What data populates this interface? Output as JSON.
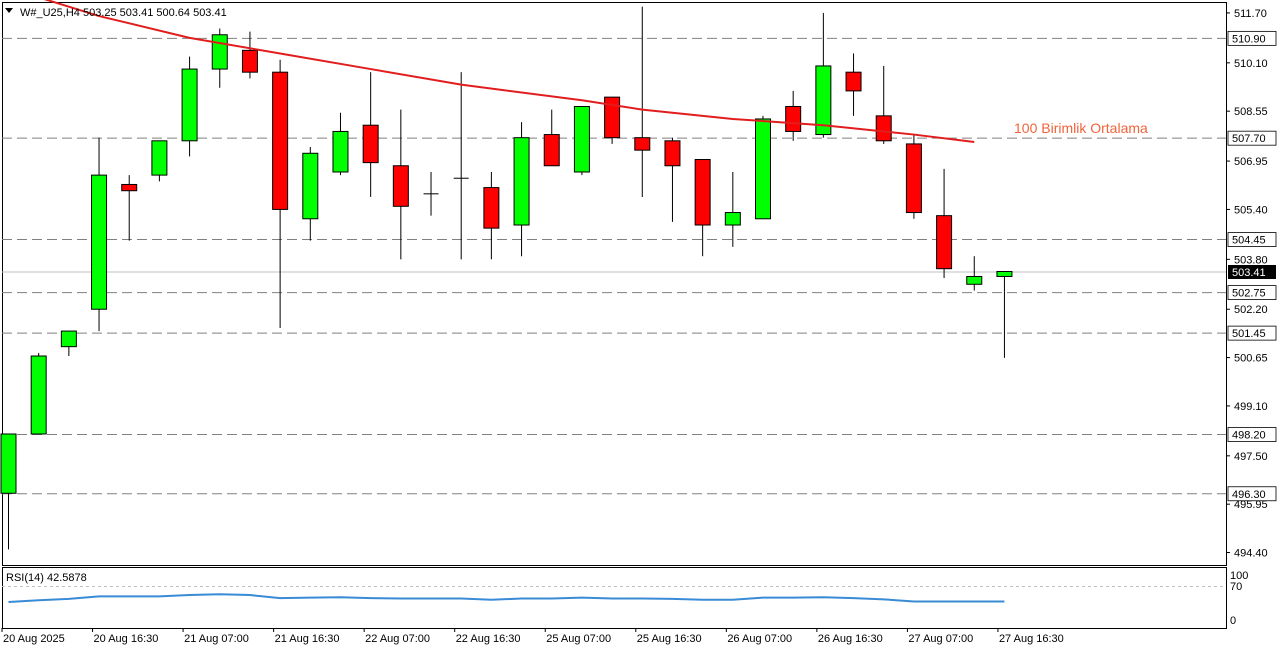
{
  "chart_data": {
    "type": "candlestick",
    "header": {
      "title": "W#_U25,H4  503.25 503.41 500.64 503.41",
      "dropdown_icon": "triangle-down-icon"
    },
    "annotation": "100 Birimlik Ortalama",
    "colors": {
      "up": "#00ff00",
      "down": "#ff0000",
      "ma": "#e11d1d",
      "rsi": "#3a8bd6",
      "annotation": "#f0643c",
      "level": "#808080"
    },
    "y_axis": {
      "min": 494.0,
      "max": 512.05,
      "ticks": [
        494.4,
        495.95,
        497.5,
        499.1,
        500.65,
        502.2,
        503.8,
        505.4,
        506.95,
        508.55,
        510.1,
        511.7
      ]
    },
    "horizontal_levels": [
      510.9,
      507.7,
      504.45,
      502.75,
      501.45,
      498.2,
      496.3
    ],
    "current_price": 503.41,
    "x_labels": [
      {
        "i": 0,
        "text": "20 Aug 2025"
      },
      {
        "i": 3,
        "text": "20 Aug 16:30"
      },
      {
        "i": 6,
        "text": "21 Aug 07:00"
      },
      {
        "i": 9,
        "text": "21 Aug 16:30"
      },
      {
        "i": 12,
        "text": "22 Aug 07:00"
      },
      {
        "i": 15,
        "text": "22 Aug 16:30"
      },
      {
        "i": 18,
        "text": "25 Aug 07:00"
      },
      {
        "i": 21,
        "text": "25 Aug 16:30"
      },
      {
        "i": 24,
        "text": "26 Aug 07:00"
      },
      {
        "i": 27,
        "text": "26 Aug 16:30"
      },
      {
        "i": 30,
        "text": "27 Aug 07:00"
      },
      {
        "i": 33,
        "text": "27 Aug 16:30"
      }
    ],
    "candles": [
      {
        "o": 496.3,
        "h": 498.2,
        "l": 494.5,
        "c": 498.2
      },
      {
        "o": 498.2,
        "h": 500.8,
        "l": 498.2,
        "c": 500.7
      },
      {
        "o": 501.0,
        "h": 501.5,
        "l": 500.7,
        "c": 501.5
      },
      {
        "o": 502.2,
        "h": 507.7,
        "l": 501.5,
        "c": 506.5
      },
      {
        "o": 506.2,
        "h": 506.5,
        "l": 504.4,
        "c": 506.0
      },
      {
        "o": 506.5,
        "h": 507.6,
        "l": 506.3,
        "c": 507.6
      },
      {
        "o": 507.6,
        "h": 510.3,
        "l": 507.1,
        "c": 509.9
      },
      {
        "o": 509.9,
        "h": 511.2,
        "l": 509.3,
        "c": 511.0
      },
      {
        "o": 510.5,
        "h": 511.1,
        "l": 509.6,
        "c": 509.8
      },
      {
        "o": 509.8,
        "h": 510.2,
        "l": 501.6,
        "c": 505.4
      },
      {
        "o": 505.1,
        "h": 507.4,
        "l": 504.4,
        "c": 507.2
      },
      {
        "o": 506.6,
        "h": 508.5,
        "l": 506.5,
        "c": 507.9
      },
      {
        "o": 508.1,
        "h": 509.8,
        "l": 505.8,
        "c": 506.9
      },
      {
        "o": 506.8,
        "h": 508.6,
        "l": 503.8,
        "c": 505.5
      },
      {
        "o": 505.9,
        "h": 506.6,
        "l": 505.2,
        "c": 505.9
      },
      {
        "o": 506.4,
        "h": 509.8,
        "l": 503.8,
        "c": 506.4
      },
      {
        "o": 506.1,
        "h": 506.6,
        "l": 503.8,
        "c": 504.8
      },
      {
        "o": 504.9,
        "h": 508.2,
        "l": 503.9,
        "c": 507.7
      },
      {
        "o": 507.8,
        "h": 508.6,
        "l": 506.8,
        "c": 506.8
      },
      {
        "o": 506.6,
        "h": 508.7,
        "l": 506.5,
        "c": 508.7
      },
      {
        "o": 509.0,
        "h": 509.0,
        "l": 507.5,
        "c": 507.7
      },
      {
        "o": 507.7,
        "h": 511.9,
        "l": 505.8,
        "c": 507.3
      },
      {
        "o": 507.6,
        "h": 507.7,
        "l": 505.0,
        "c": 506.8
      },
      {
        "o": 507.0,
        "h": 507.0,
        "l": 503.9,
        "c": 504.9
      },
      {
        "o": 504.9,
        "h": 506.6,
        "l": 504.2,
        "c": 505.3
      },
      {
        "o": 505.1,
        "h": 508.4,
        "l": 505.1,
        "c": 508.3
      },
      {
        "o": 508.7,
        "h": 509.2,
        "l": 507.6,
        "c": 507.9
      },
      {
        "o": 507.8,
        "h": 511.7,
        "l": 507.7,
        "c": 510.0
      },
      {
        "o": 509.8,
        "h": 510.4,
        "l": 508.4,
        "c": 509.2
      },
      {
        "o": 508.4,
        "h": 510.0,
        "l": 507.5,
        "c": 507.6
      },
      {
        "o": 507.5,
        "h": 507.8,
        "l": 505.1,
        "c": 505.3
      },
      {
        "o": 505.2,
        "h": 506.7,
        "l": 503.2,
        "c": 503.5
      },
      {
        "o": 503.0,
        "h": 503.9,
        "l": 502.8,
        "c": 503.25
      },
      {
        "o": 503.25,
        "h": 503.41,
        "l": 500.64,
        "c": 503.41
      }
    ],
    "ma_100": {
      "label": "100 Birimlik Ortalama",
      "points": [
        {
          "i": 1,
          "v": 512.2
        },
        {
          "i": 3,
          "v": 511.6
        },
        {
          "i": 6,
          "v": 510.9
        },
        {
          "i": 9,
          "v": 510.4
        },
        {
          "i": 12,
          "v": 509.9
        },
        {
          "i": 15,
          "v": 509.4
        },
        {
          "i": 19,
          "v": 508.9
        },
        {
          "i": 21,
          "v": 508.6
        },
        {
          "i": 24,
          "v": 508.3
        },
        {
          "i": 27,
          "v": 508.1
        },
        {
          "i": 30,
          "v": 507.8
        },
        {
          "i": 32,
          "v": 507.56
        }
      ]
    },
    "rsi": {
      "label": "RSI(14) 42.5878",
      "range": [
        0,
        100
      ],
      "levels": [
        100,
        70,
        0
      ],
      "points": [
        {
          "i": 0,
          "v": 42
        },
        {
          "i": 1,
          "v": 46
        },
        {
          "i": 2,
          "v": 49
        },
        {
          "i": 3,
          "v": 55
        },
        {
          "i": 4,
          "v": 55
        },
        {
          "i": 5,
          "v": 55
        },
        {
          "i": 6,
          "v": 58
        },
        {
          "i": 7,
          "v": 60
        },
        {
          "i": 8,
          "v": 58
        },
        {
          "i": 9,
          "v": 51
        },
        {
          "i": 10,
          "v": 52
        },
        {
          "i": 11,
          "v": 53
        },
        {
          "i": 12,
          "v": 51
        },
        {
          "i": 13,
          "v": 50
        },
        {
          "i": 14,
          "v": 50
        },
        {
          "i": 15,
          "v": 50
        },
        {
          "i": 16,
          "v": 47
        },
        {
          "i": 17,
          "v": 50
        },
        {
          "i": 18,
          "v": 50
        },
        {
          "i": 19,
          "v": 52
        },
        {
          "i": 20,
          "v": 50
        },
        {
          "i": 21,
          "v": 50
        },
        {
          "i": 22,
          "v": 49
        },
        {
          "i": 23,
          "v": 47
        },
        {
          "i": 24,
          "v": 47
        },
        {
          "i": 25,
          "v": 52
        },
        {
          "i": 26,
          "v": 52
        },
        {
          "i": 27,
          "v": 53
        },
        {
          "i": 28,
          "v": 51
        },
        {
          "i": 29,
          "v": 48
        },
        {
          "i": 30,
          "v": 43
        },
        {
          "i": 31,
          "v": 43
        },
        {
          "i": 32,
          "v": 43
        },
        {
          "i": 33,
          "v": 43
        }
      ]
    }
  }
}
